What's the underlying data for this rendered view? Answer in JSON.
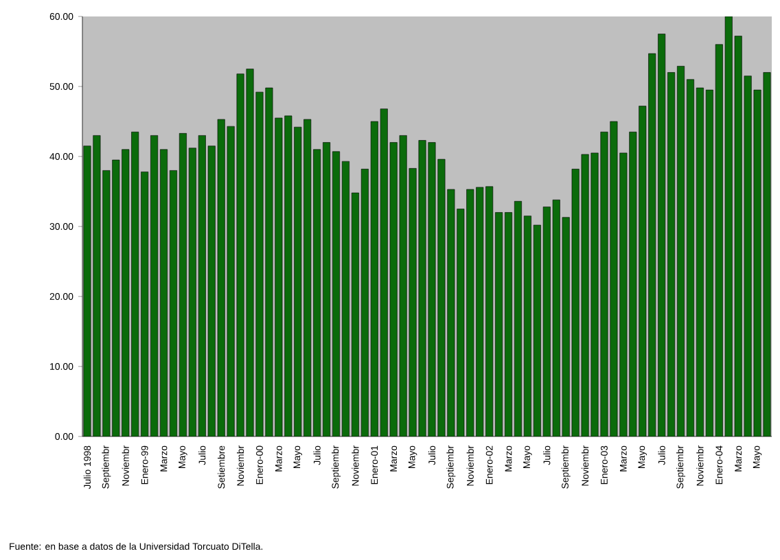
{
  "chart_data": {
    "type": "bar",
    "categories": [
      "Julio 1998",
      null,
      "Septiembr",
      null,
      "Noviembr",
      null,
      "Enero-99",
      null,
      "Marzo",
      null,
      "Mayo",
      null,
      "Julio",
      null,
      "Setiembre",
      null,
      "Noviembr",
      null,
      "Enero-00",
      null,
      "Marzo",
      null,
      "Mayo",
      null,
      "Julio",
      null,
      "Septiembr",
      null,
      "Noviembr",
      null,
      "Enero-01",
      null,
      "Marzo",
      null,
      "Mayo",
      null,
      "Julio",
      null,
      "Septiembr",
      null,
      "Noviembr",
      null,
      "Enero-02",
      null,
      "Marzo",
      null,
      "Mayo",
      null,
      "Julio",
      null,
      "Septiembr",
      null,
      "Noviembr",
      null,
      "Enero-03",
      null,
      "Marzo",
      null,
      "Mayo",
      null,
      "Julio",
      null,
      "Septiembr",
      null,
      "Noviembr",
      null,
      "Enero-04",
      null,
      "Marzo",
      null,
      "Mayo",
      null
    ],
    "values": [
      41.5,
      43,
      38,
      39.5,
      41,
      43.5,
      37.8,
      43,
      41,
      38,
      43.3,
      41.2,
      43,
      41.5,
      45.3,
      44.3,
      51.8,
      52.5,
      49.2,
      49.8,
      45.5,
      45.8,
      44.2,
      45.3,
      41,
      42,
      40.7,
      39.3,
      34.8,
      38.2,
      45,
      46.8,
      42,
      43,
      38.3,
      42.3,
      42,
      39.6,
      35.3,
      32.5,
      35.3,
      35.6,
      35.7,
      32,
      32,
      33.6,
      31.5,
      30.2,
      32.8,
      33.8,
      31.3,
      38.2,
      40.3,
      40.5,
      43.5,
      45,
      40.5,
      43.5,
      47.2,
      54.7,
      57.5,
      52,
      52.9,
      51,
      49.8,
      49.5,
      56,
      60,
      57.2,
      51.5,
      49.5,
      52
    ],
    "color": "#0b6b0b",
    "ylim": [
      0,
      60
    ],
    "yticks": [
      {
        "value": 0,
        "label": "0.00"
      },
      {
        "value": 10,
        "label": "10.00"
      },
      {
        "value": 20,
        "label": "20.00"
      },
      {
        "value": 30,
        "label": "30.00"
      },
      {
        "value": 40,
        "label": "40.00"
      },
      {
        "value": 50,
        "label": "50.00"
      },
      {
        "value": 60,
        "label": "60.00"
      }
    ],
    "annotations": [
      "Fuente: en base a datos de la Universidad Torcuato DiTella."
    ]
  }
}
